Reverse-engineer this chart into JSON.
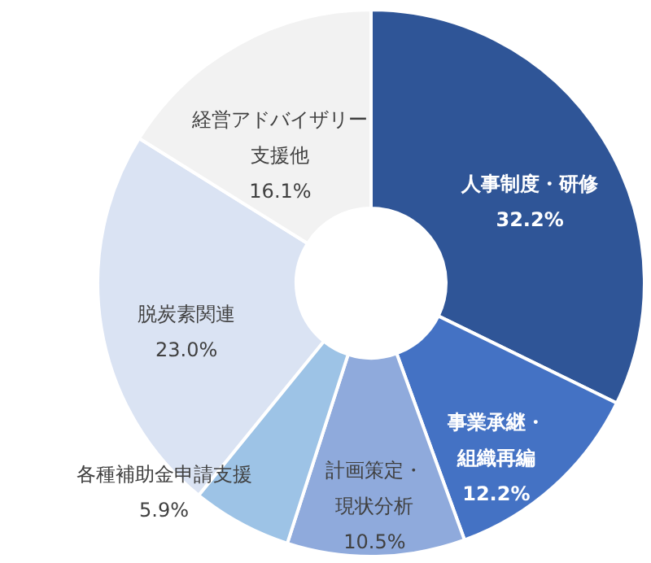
{
  "chart_data": {
    "type": "donut",
    "categories": [
      "人事制度・研修",
      "事業承継・組織再編",
      "計画策定・現状分析",
      "各種補助金申請支援",
      "脱炭素関連",
      "経営アドバイザリー支援他"
    ],
    "values": [
      32.2,
      12.2,
      10.5,
      5.9,
      23.0,
      16.1
    ],
    "value_labels": [
      "32.2%",
      "12.2%",
      "10.5%",
      "5.9%",
      "23.0%",
      "16.1%"
    ],
    "colors": [
      "#2f5597",
      "#4472c4",
      "#8faadc",
      "#9dc3e6",
      "#dae3f3",
      "#f2f2f2"
    ]
  }
}
